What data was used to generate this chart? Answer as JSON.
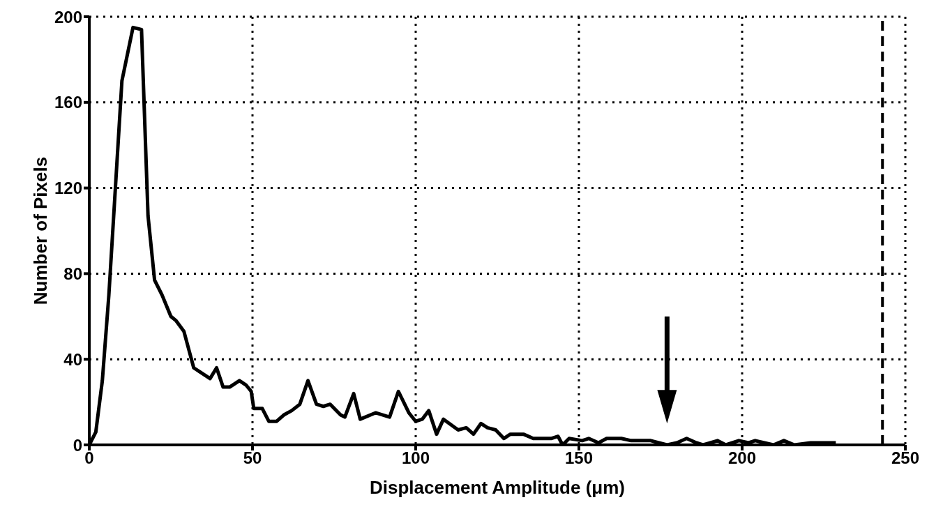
{
  "chart_data": {
    "type": "line",
    "xlabel": "Displacement Amplitude (μm)",
    "ylabel": "Number of Pixels",
    "x": [
      0,
      2,
      4,
      6,
      8,
      10,
      13.4,
      16,
      18,
      20,
      22.3,
      25,
      26.6,
      29,
      32,
      34,
      37,
      39,
      41,
      43,
      46,
      48,
      49.6,
      50.4,
      53,
      55,
      57.4,
      59.6,
      62,
      64.5,
      67,
      69.6,
      71.7,
      73.8,
      77,
      78.3,
      81,
      83,
      87.7,
      92,
      94.7,
      97.9,
      100,
      102,
      104,
      106.4,
      108.5,
      113,
      115.5,
      117.7,
      120,
      122,
      124.5,
      127,
      129,
      133,
      136,
      141.5,
      143.6,
      145,
      147,
      151,
      153,
      156,
      158.5,
      163,
      166,
      172,
      177,
      180,
      183,
      186,
      188,
      192.5,
      195,
      199,
      202,
      204,
      209.6,
      212.8,
      216,
      221,
      228.7
    ],
    "series": [
      {
        "color": "#000000",
        "values": [
          0,
          6,
          30,
          70,
          120,
          170,
          195,
          194,
          107,
          77,
          70,
          60,
          58,
          53,
          36,
          34,
          31,
          36,
          27,
          27,
          30,
          28,
          25,
          17,
          17,
          11,
          11,
          14,
          16,
          19,
          30,
          19,
          18,
          19,
          14,
          13,
          24,
          12,
          15,
          13,
          25,
          15,
          11,
          12,
          16,
          5,
          12,
          7,
          8,
          5,
          10,
          8,
          7,
          3,
          5,
          5,
          3,
          3,
          4,
          0,
          3,
          2,
          3,
          1,
          3,
          3,
          2,
          2,
          0,
          1,
          3,
          1,
          0,
          2,
          0,
          2,
          1,
          2,
          0,
          2,
          0,
          1,
          1
        ]
      }
    ],
    "xlim": [
      0,
      250
    ],
    "xticks": [
      0,
      50,
      100,
      150,
      200,
      250
    ],
    "ylim": [
      0,
      200
    ],
    "yticks": [
      0,
      40,
      80,
      120,
      160,
      200
    ],
    "grid": true,
    "marker": "none",
    "line_style": "solid",
    "legend": false,
    "ref_lines": [
      {
        "axis": "x",
        "value": 243,
        "line_style": "dashed",
        "color": "#000000"
      }
    ]
  }
}
